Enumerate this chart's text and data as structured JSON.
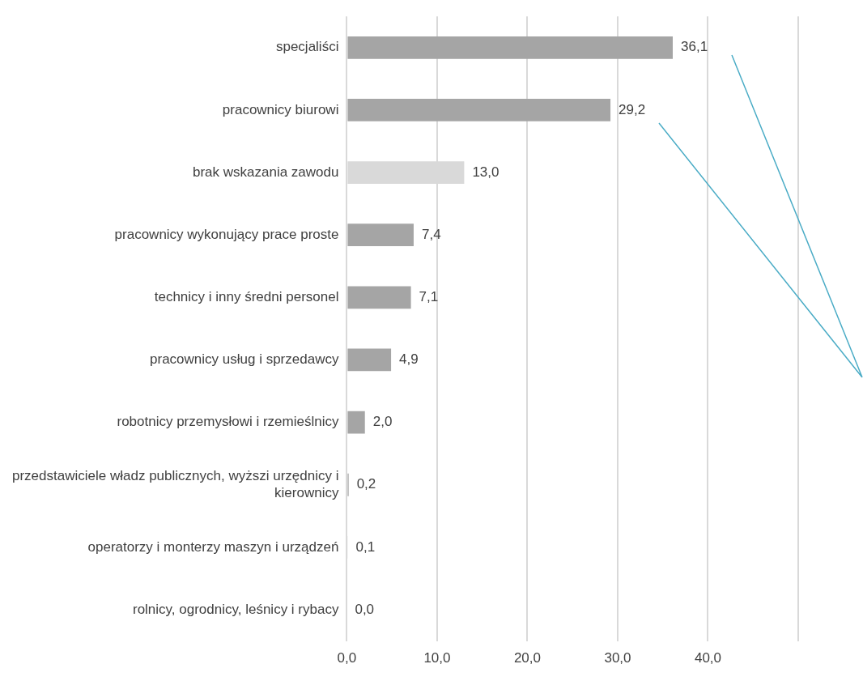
{
  "chart_data": {
    "type": "bar",
    "orientation": "horizontal",
    "categories": [
      "specjaliści",
      "pracownicy biurowi",
      "brak wskazania zawodu",
      "pracownicy wykonujący prace proste",
      "technicy i inny średni personel",
      "pracownicy usług i sprzedawcy",
      "robotnicy przemysłowi i rzemieślnicy",
      "przedstawiciele władz publicznych, wyższi urzędnicy i kierownicy",
      "operatorzy i monterzy maszyn i urządzeń",
      "rolnicy, ogrodnicy, leśnicy i rybacy"
    ],
    "values": [
      36.1,
      29.2,
      13.0,
      7.4,
      7.1,
      4.9,
      2.0,
      0.2,
      0.1,
      0.0
    ],
    "colors": [
      "#a5a5a5",
      "#a5a5a5",
      "#d9d9d9",
      "#a5a5a5",
      "#a5a5a5",
      "#a5a5a5",
      "#a5a5a5",
      "#a5a5a5",
      "#a5a5a5",
      "#a5a5a5"
    ],
    "value_labels": [
      "36,1",
      "29,2",
      "13,0",
      "7,4",
      "7,1",
      "4,9",
      "2,0",
      "0,2",
      "0,1",
      "0,0"
    ],
    "xlim": [
      0,
      50
    ],
    "xticks": [
      {
        "value": 0,
        "label": "0,0"
      },
      {
        "value": 10,
        "label": "10,0"
      },
      {
        "value": 20,
        "label": "20,0"
      },
      {
        "value": 30,
        "label": "30,0"
      },
      {
        "value": 40,
        "label": "40,0"
      },
      {
        "value": 50,
        "label": null
      }
    ],
    "grid": "x",
    "legend": false
  }
}
